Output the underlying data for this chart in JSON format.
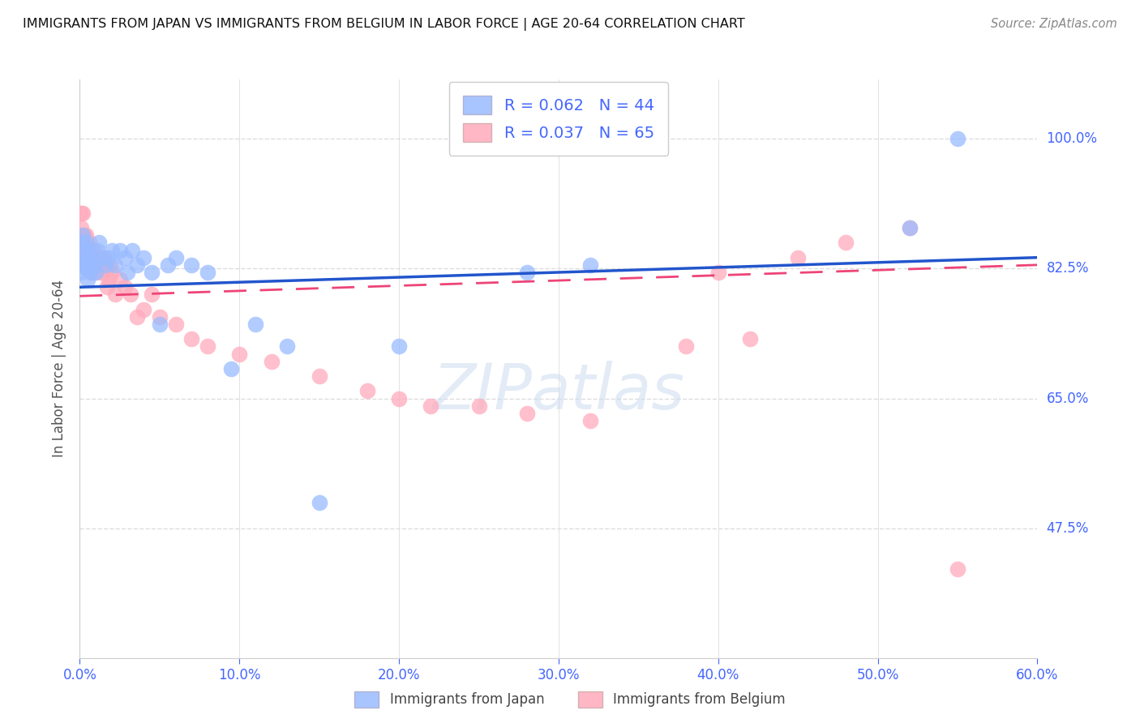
{
  "title": "IMMIGRANTS FROM JAPAN VS IMMIGRANTS FROM BELGIUM IN LABOR FORCE | AGE 20-64 CORRELATION CHART",
  "source": "Source: ZipAtlas.com",
  "xlabel_japan": "Immigrants from Japan",
  "xlabel_belgium": "Immigrants from Belgium",
  "ylabel": "In Labor Force | Age 20-64",
  "xlim": [
    0.0,
    0.6
  ],
  "ylim": [
    0.3,
    1.08
  ],
  "yticks": [
    0.475,
    0.65,
    0.825,
    1.0
  ],
  "ytick_labels": [
    "47.5%",
    "65.0%",
    "82.5%",
    "100.0%"
  ],
  "xticks": [
    0.0,
    0.1,
    0.2,
    0.3,
    0.4,
    0.5,
    0.6
  ],
  "xtick_labels": [
    "0.0%",
    "10.0%",
    "20.0%",
    "30.0%",
    "40.0%",
    "50.0%",
    "60.0%"
  ],
  "japan_color": "#99bbff",
  "belgium_color": "#ffaabb",
  "japan_line_color": "#2255cc",
  "belgium_line_color": "#ee4477",
  "axis_tick_color": "#4466ff",
  "grid_color": "#dddddd",
  "title_color": "#222222",
  "watermark": "ZIPatlas",
  "japan_R": 0.062,
  "japan_N": 44,
  "belgium_R": 0.037,
  "belgium_N": 65,
  "japan_x": [
    0.001,
    0.001,
    0.002,
    0.002,
    0.003,
    0.003,
    0.004,
    0.004,
    0.005,
    0.005,
    0.006,
    0.006,
    0.007,
    0.008,
    0.009,
    0.01,
    0.011,
    0.012,
    0.014,
    0.016,
    0.018,
    0.02,
    0.022,
    0.025,
    0.028,
    0.03,
    0.033,
    0.036,
    0.04,
    0.045,
    0.05,
    0.055,
    0.06,
    0.07,
    0.08,
    0.095,
    0.11,
    0.13,
    0.15,
    0.2,
    0.28,
    0.32,
    0.52,
    0.55
  ],
  "japan_y": [
    0.82,
    0.84,
    0.86,
    0.87,
    0.83,
    0.85,
    0.825,
    0.86,
    0.81,
    0.84,
    0.83,
    0.85,
    0.82,
    0.84,
    0.83,
    0.82,
    0.85,
    0.86,
    0.84,
    0.83,
    0.84,
    0.85,
    0.83,
    0.85,
    0.84,
    0.82,
    0.85,
    0.83,
    0.84,
    0.82,
    0.75,
    0.83,
    0.84,
    0.83,
    0.82,
    0.69,
    0.75,
    0.72,
    0.51,
    0.72,
    0.82,
    0.83,
    0.88,
    1.0
  ],
  "belgium_x": [
    0.001,
    0.001,
    0.001,
    0.001,
    0.002,
    0.002,
    0.002,
    0.003,
    0.003,
    0.003,
    0.003,
    0.004,
    0.004,
    0.004,
    0.005,
    0.005,
    0.005,
    0.006,
    0.006,
    0.006,
    0.007,
    0.007,
    0.007,
    0.008,
    0.008,
    0.009,
    0.009,
    0.01,
    0.011,
    0.012,
    0.013,
    0.014,
    0.015,
    0.016,
    0.017,
    0.018,
    0.019,
    0.02,
    0.022,
    0.025,
    0.028,
    0.032,
    0.036,
    0.04,
    0.045,
    0.05,
    0.06,
    0.07,
    0.08,
    0.1,
    0.12,
    0.15,
    0.18,
    0.2,
    0.22,
    0.25,
    0.28,
    0.32,
    0.38,
    0.4,
    0.42,
    0.45,
    0.48,
    0.52,
    0.55
  ],
  "belgium_y": [
    0.9,
    0.88,
    0.86,
    0.84,
    0.87,
    0.85,
    0.9,
    0.87,
    0.85,
    0.84,
    0.83,
    0.85,
    0.84,
    0.87,
    0.85,
    0.84,
    0.83,
    0.84,
    0.86,
    0.83,
    0.84,
    0.83,
    0.82,
    0.85,
    0.84,
    0.83,
    0.82,
    0.84,
    0.83,
    0.84,
    0.82,
    0.83,
    0.84,
    0.82,
    0.8,
    0.81,
    0.83,
    0.82,
    0.79,
    0.81,
    0.8,
    0.79,
    0.76,
    0.77,
    0.79,
    0.76,
    0.75,
    0.73,
    0.72,
    0.71,
    0.7,
    0.68,
    0.66,
    0.65,
    0.64,
    0.64,
    0.63,
    0.62,
    0.72,
    0.82,
    0.73,
    0.84,
    0.86,
    0.88,
    0.42
  ]
}
